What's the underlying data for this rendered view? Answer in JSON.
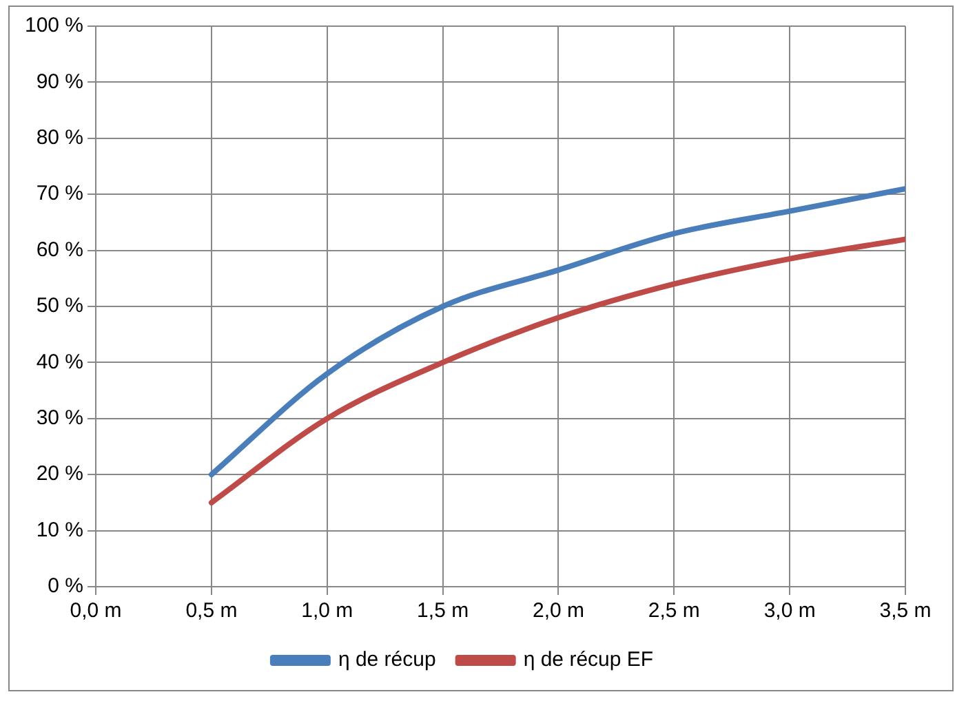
{
  "chart_data": {
    "type": "line",
    "x": [
      0.5,
      1.0,
      1.5,
      2.0,
      2.5,
      3.0,
      3.5
    ],
    "series": [
      {
        "name": "η de récup",
        "color": "#4a7ebb",
        "values": [
          20,
          38,
          50,
          56.5,
          63,
          67,
          71
        ]
      },
      {
        "name": "η de récup EF",
        "color": "#be4b48",
        "values": [
          15,
          30,
          40,
          48,
          54,
          58.5,
          62
        ]
      }
    ],
    "xlim": [
      0,
      3.5
    ],
    "xticks": [
      {
        "value": 0,
        "label": "0,0 m"
      },
      {
        "value": 0.5,
        "label": "0,5 m"
      },
      {
        "value": 1,
        "label": "1,0 m"
      },
      {
        "value": 1.5,
        "label": "1,5 m"
      },
      {
        "value": 2,
        "label": "2,0 m"
      },
      {
        "value": 2.5,
        "label": "2,5 m"
      },
      {
        "value": 3,
        "label": "3,0 m"
      },
      {
        "value": 3.5,
        "label": "3,5 m"
      }
    ],
    "ylim": [
      0,
      100
    ],
    "yticks": [
      {
        "value": 0,
        "label": "0 %"
      },
      {
        "value": 10,
        "label": "10 %"
      },
      {
        "value": 20,
        "label": "20 %"
      },
      {
        "value": 30,
        "label": "30 %"
      },
      {
        "value": 40,
        "label": "40 %"
      },
      {
        "value": 50,
        "label": "50 %"
      },
      {
        "value": 60,
        "label": "60 %"
      },
      {
        "value": 70,
        "label": "70 %"
      },
      {
        "value": 80,
        "label": "80 %"
      },
      {
        "value": 90,
        "label": "90 %"
      },
      {
        "value": 100,
        "label": "100 %"
      }
    ],
    "grid": true,
    "legend": "bottom",
    "marker": "none",
    "line_style": "solid"
  }
}
